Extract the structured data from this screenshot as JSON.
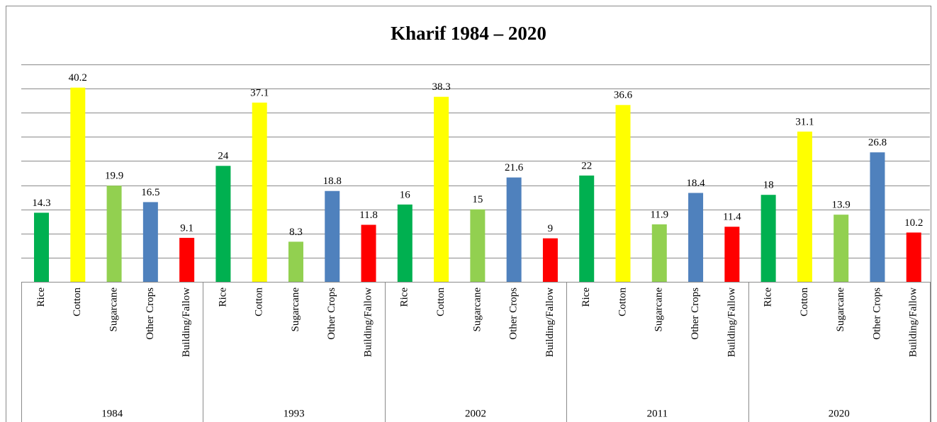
{
  "chart_data": {
    "type": "bar",
    "title": "Kharif 1984 – 2020",
    "categories": [
      "1984",
      "1993",
      "2002",
      "2011",
      "2020"
    ],
    "series": [
      {
        "name": "Rice",
        "color": "#00b050",
        "values": [
          14.3,
          24,
          16,
          22,
          18
        ]
      },
      {
        "name": "Cotton",
        "color": "#ffff00",
        "values": [
          40.2,
          37.1,
          38.3,
          36.6,
          31.1
        ]
      },
      {
        "name": "Sugarcane",
        "color": "#92d050",
        "values": [
          19.9,
          8.3,
          15,
          11.9,
          13.9
        ]
      },
      {
        "name": "Other Crops",
        "color": "#4f81bd",
        "values": [
          16.5,
          18.8,
          21.6,
          18.4,
          26.8
        ]
      },
      {
        "name": "Building/Fallow",
        "color": "#ff0000",
        "values": [
          9.1,
          11.8,
          9,
          11.4,
          10.2
        ]
      }
    ],
    "ylim": [
      0,
      45
    ],
    "yticks": [
      0,
      5,
      10,
      15,
      20,
      25,
      30,
      35,
      40,
      45
    ],
    "grid": true
  }
}
